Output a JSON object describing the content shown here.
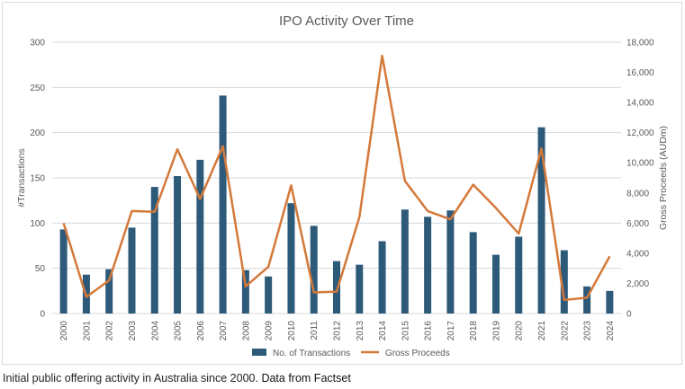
{
  "caption": {
    "text": "Initial public offering activity in Australia since 2000.",
    "source": "Data from Factset"
  },
  "colors": {
    "bars": "#2e5a7a",
    "line": "#d4793a",
    "grid": "#d9d9d9",
    "text": "#595959"
  },
  "chart_data": {
    "type": "bar",
    "title": "IPO Activity Over Time",
    "ylabel": "#Transactions",
    "y2label": "Gross Proceeds (AUDm)",
    "ylim": [
      0,
      300
    ],
    "y2lim": [
      0,
      18000
    ],
    "yticks": [
      "0",
      "50",
      "100",
      "150",
      "200",
      "250",
      "300"
    ],
    "y2ticks": [
      "0",
      "2,000",
      "4,000",
      "6,000",
      "8,000",
      "10,000",
      "12,000",
      "14,000",
      "16,000",
      "18,000"
    ],
    "categories": [
      "2000",
      "2001",
      "2002",
      "2003",
      "2004",
      "2005",
      "2006",
      "2007",
      "2008",
      "2009",
      "2010",
      "2011",
      "2012",
      "2013",
      "2014",
      "2015",
      "2016",
      "2017",
      "2018",
      "2019",
      "2020",
      "2021",
      "2022",
      "2023",
      "2024"
    ],
    "legend": "bottom",
    "series": [
      {
        "name": "No. of Transactions",
        "type": "bar",
        "axis": "left",
        "values": [
          93,
          43,
          49,
          95,
          140,
          152,
          170,
          241,
          48,
          41,
          122,
          97,
          58,
          54,
          80,
          115,
          107,
          114,
          90,
          65,
          85,
          206,
          70,
          30,
          25
        ]
      },
      {
        "name": "Gross Proceeds",
        "type": "line",
        "axis": "right",
        "values": [
          6000,
          1100,
          2200,
          6800,
          6750,
          10900,
          7600,
          11100,
          1800,
          3100,
          8500,
          1400,
          1450,
          6400,
          17100,
          8800,
          6800,
          6250,
          8550,
          7000,
          5300,
          10950,
          900,
          1050,
          3800
        ]
      }
    ]
  }
}
